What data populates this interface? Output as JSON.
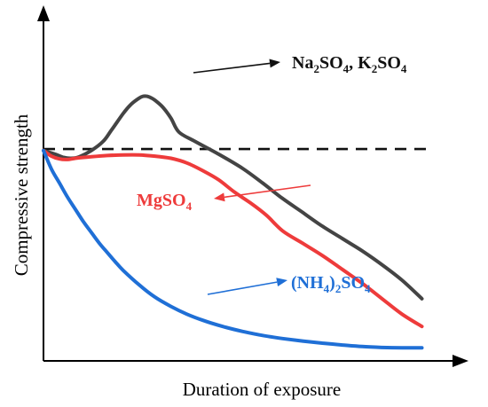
{
  "chart_data": {
    "type": "line",
    "xlabel": "Duration of exposure",
    "ylabel": "Compressive strength",
    "xlim": [
      0,
      100
    ],
    "ylim": [
      0,
      100
    ],
    "reference_line": {
      "style": "dashed",
      "y": 67.5,
      "x_range": [
        0,
        96
      ]
    },
    "series": [
      {
        "key": "na_k",
        "color": "#444444",
        "x": [
          0,
          3,
          5,
          7,
          9,
          12,
          15,
          17,
          20,
          22,
          24,
          25,
          26,
          27,
          28,
          30,
          32,
          34,
          38,
          44,
          50,
          55,
          60,
          65,
          70,
          75,
          80,
          85,
          90,
          95
        ],
        "y": [
          67,
          65.8,
          64.8,
          64.5,
          65,
          67,
          70,
          73.5,
          79,
          82,
          84,
          84.6,
          84.6,
          84.1,
          83.3,
          81,
          77.5,
          73,
          70,
          65.8,
          61.2,
          56.5,
          51.5,
          47,
          42.5,
          38.5,
          34.5,
          30,
          25,
          19
        ]
      },
      {
        "key": "mg",
        "color": "#ee3b3b",
        "x": [
          0,
          2,
          4,
          6,
          8,
          12,
          16,
          20,
          24,
          28,
          32,
          36,
          40,
          44,
          48,
          52,
          56,
          60,
          65,
          70,
          75,
          80,
          85,
          90,
          95
        ],
        "y": [
          67,
          65.2,
          64.3,
          64.1,
          64.5,
          65,
          65.4,
          65.6,
          65.6,
          65.2,
          64.5,
          63,
          60.5,
          57.5,
          53.5,
          50,
          46,
          41,
          37,
          33,
          28.5,
          24,
          19,
          14,
          10
        ]
      },
      {
        "key": "nh4",
        "color": "#1f6fd6",
        "x": [
          0,
          2,
          4,
          6,
          8,
          10,
          12,
          14,
          16,
          18,
          20,
          24,
          28,
          32,
          36,
          40,
          45,
          50,
          55,
          60,
          65,
          70,
          75,
          80,
          85,
          90,
          95
        ],
        "y": [
          67,
          61,
          56.5,
          52,
          48,
          44,
          40.5,
          37,
          34,
          31,
          28.2,
          23.5,
          19.5,
          16.5,
          14,
          12,
          10,
          8.4,
          7.1,
          6.1,
          5.3,
          4.6,
          4,
          3.5,
          3.2,
          3.1,
          3.1
        ]
      }
    ]
  },
  "annotations": [
    {
      "key": "na_k",
      "color": "#111111",
      "label_parts": [
        {
          "t": "Na"
        },
        {
          "t": "2",
          "sub": true
        },
        {
          "t": "SO"
        },
        {
          "t": "4",
          "sub": true
        },
        {
          "t": ", K"
        },
        {
          "t": "2",
          "sub": true
        },
        {
          "t": "SO"
        },
        {
          "t": "4",
          "sub": true
        }
      ]
    },
    {
      "key": "mg",
      "color": "#ee3b3b",
      "label_parts": [
        {
          "t": "MgSO"
        },
        {
          "t": "4",
          "sub": true
        }
      ]
    },
    {
      "key": "nh4",
      "color": "#1f6fd6",
      "label_parts": [
        {
          "t": "(NH"
        },
        {
          "t": "4",
          "sub": true
        },
        {
          "t": ")"
        },
        {
          "t": "2",
          "sub": true
        },
        {
          "t": "SO"
        },
        {
          "t": "4",
          "sub": true
        }
      ]
    }
  ]
}
